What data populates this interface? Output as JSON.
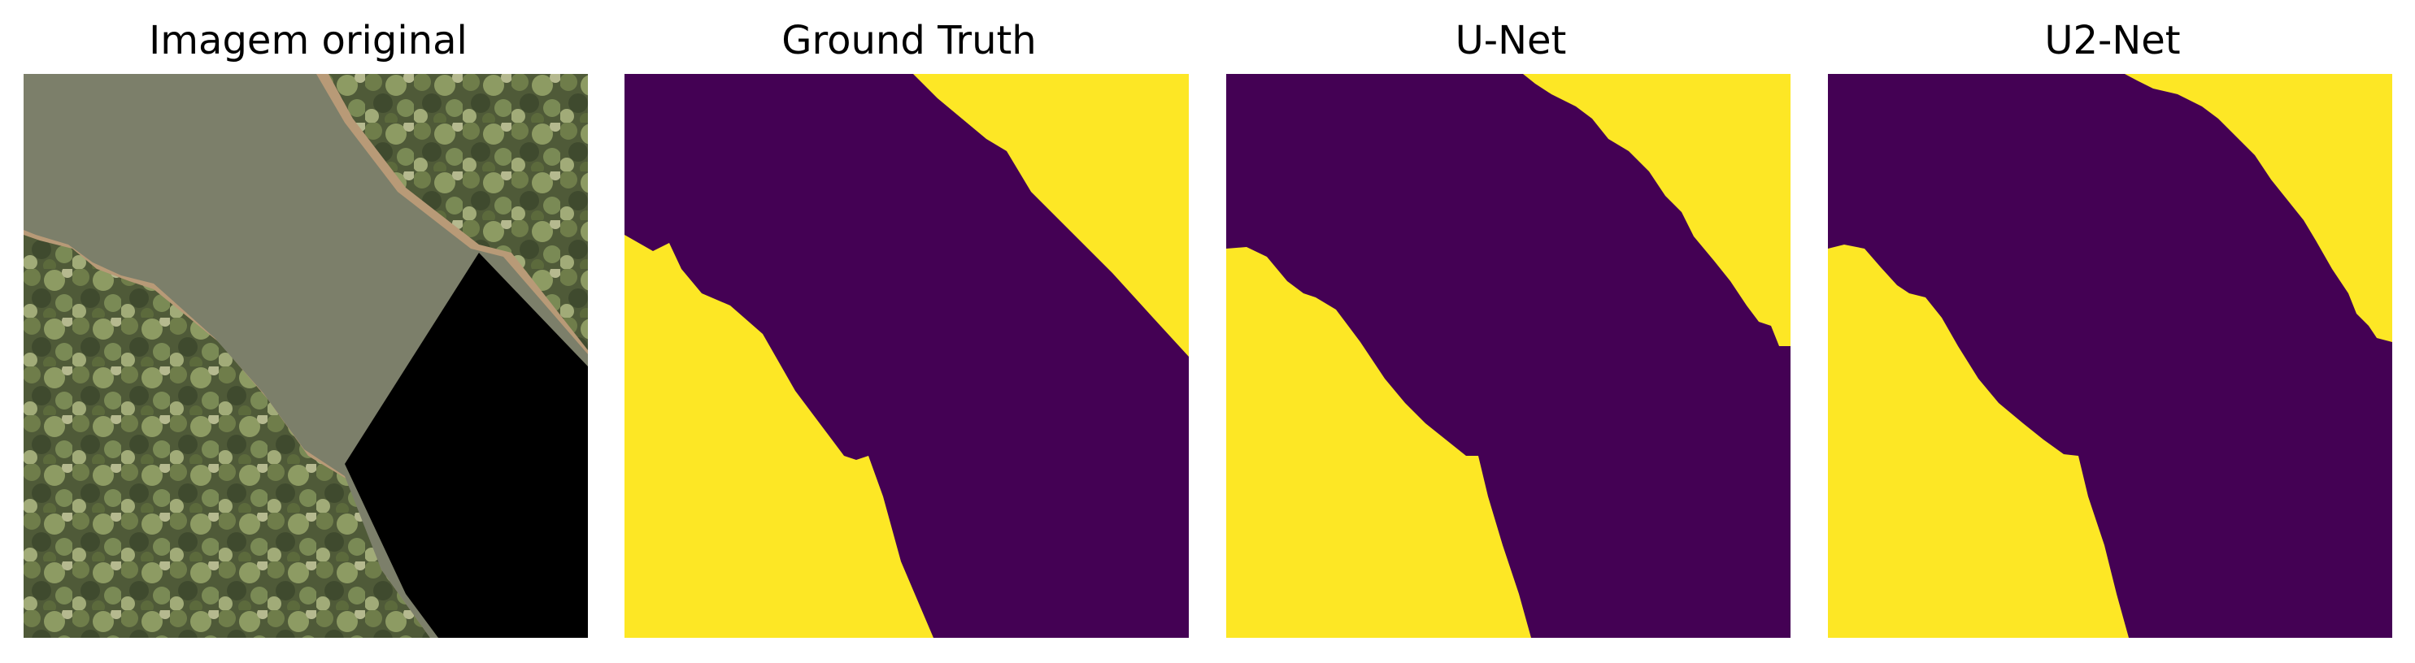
{
  "figure": {
    "panels": [
      {
        "title": "Imagem original",
        "kind": "aerial-photo"
      },
      {
        "title": "Ground Truth",
        "kind": "segmentation-mask"
      },
      {
        "title": "U-Net",
        "kind": "segmentation-mask"
      },
      {
        "title": "U2-Net",
        "kind": "segmentation-mask"
      }
    ]
  },
  "colors": {
    "mask_background": "#440154",
    "mask_foreground": "#fde725",
    "water": "#7c7f6a",
    "vegetation_dark": "#3f4a2e",
    "vegetation_light": "#8d9b63",
    "sand": "#c2a27c",
    "nodata": "#000000"
  }
}
